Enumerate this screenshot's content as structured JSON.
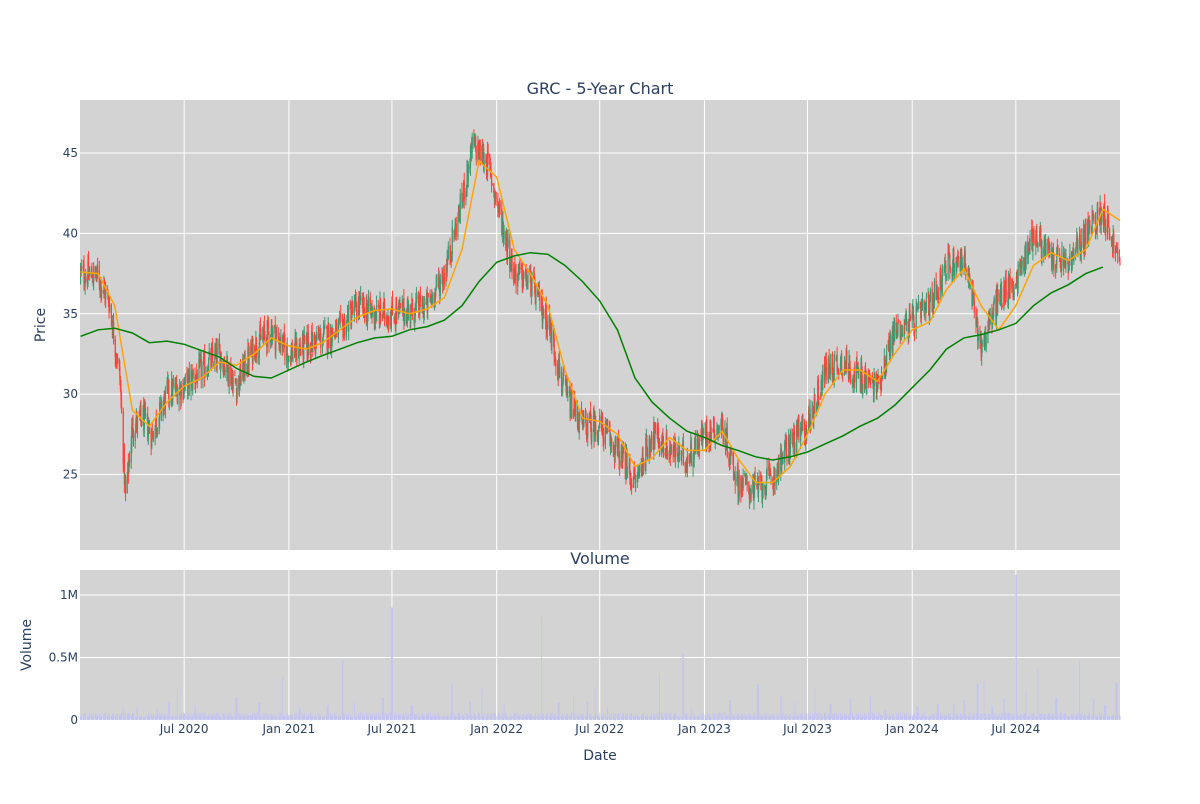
{
  "chart_data": [
    {
      "type": "candlestick",
      "title": "GRC - 5-Year Chart",
      "ylabel": "Price",
      "xlabel": "",
      "x_range": [
        "2019-12-31",
        "2024-12-31"
      ],
      "ylim": [
        20.3,
        48.3
      ],
      "y_ticks": [
        25,
        30,
        35,
        40,
        45
      ],
      "x_ticks": [
        "2020-07-01",
        "2021-01-01",
        "2021-07-01",
        "2022-01-01",
        "2022-07-01",
        "2023-01-01",
        "2023-07-01",
        "2024-01-01",
        "2024-07-01"
      ],
      "grid": true,
      "background": "#d3d3d3",
      "increasing_color": "#3d9970",
      "decreasing_color": "#ff4136",
      "close_anchors": [
        [
          "2020-01-01",
          37.5
        ],
        [
          "2020-02-01",
          37.3
        ],
        [
          "2020-02-20",
          35.8
        ],
        [
          "2020-03-10",
          31.0
        ],
        [
          "2020-03-20",
          23.5
        ],
        [
          "2020-04-01",
          28.0
        ],
        [
          "2020-04-20",
          28.5
        ],
        [
          "2020-05-05",
          27.5
        ],
        [
          "2020-06-01",
          30.0
        ],
        [
          "2020-07-01",
          30.5
        ],
        [
          "2020-08-01",
          31.5
        ],
        [
          "2020-09-01",
          32.5
        ],
        [
          "2020-10-01",
          30.5
        ],
        [
          "2020-11-01",
          33.0
        ],
        [
          "2020-12-01",
          34.0
        ],
        [
          "2021-01-01",
          32.5
        ],
        [
          "2021-02-01",
          33.0
        ],
        [
          "2021-03-01",
          33.5
        ],
        [
          "2021-04-01",
          34.0
        ],
        [
          "2021-05-01",
          35.5
        ],
        [
          "2021-06-01",
          35.0
        ],
        [
          "2021-07-01",
          35.0
        ],
        [
          "2021-08-01",
          35.2
        ],
        [
          "2021-09-01",
          35.5
        ],
        [
          "2021-10-01",
          37.5
        ],
        [
          "2021-11-01",
          42.0
        ],
        [
          "2021-11-20",
          45.5
        ],
        [
          "2021-12-15",
          44.5
        ],
        [
          "2022-01-15",
          40.0
        ],
        [
          "2022-02-01",
          37.5
        ],
        [
          "2022-03-01",
          37.0
        ],
        [
          "2022-04-01",
          34.5
        ],
        [
          "2022-05-01",
          30.0
        ],
        [
          "2022-06-01",
          28.0
        ],
        [
          "2022-07-01",
          28.0
        ],
        [
          "2022-08-01",
          26.5
        ],
        [
          "2022-09-01",
          24.5
        ],
        [
          "2022-10-01",
          27.5
        ],
        [
          "2022-11-01",
          26.5
        ],
        [
          "2022-12-01",
          26.0
        ],
        [
          "2023-01-01",
          27.5
        ],
        [
          "2023-02-01",
          28.0
        ],
        [
          "2023-03-01",
          24.5
        ],
        [
          "2023-04-01",
          24.0
        ],
        [
          "2023-05-01",
          24.8
        ],
        [
          "2023-06-01",
          27.0
        ],
        [
          "2023-07-01",
          28.0
        ],
        [
          "2023-08-01",
          31.5
        ],
        [
          "2023-09-01",
          32.0
        ],
        [
          "2023-10-01",
          31.0
        ],
        [
          "2023-11-01",
          30.5
        ],
        [
          "2023-12-01",
          34.0
        ],
        [
          "2024-01-01",
          34.5
        ],
        [
          "2024-02-01",
          35.5
        ],
        [
          "2024-03-01",
          38.0
        ],
        [
          "2024-04-01",
          38.5
        ],
        [
          "2024-05-01",
          33.0
        ],
        [
          "2024-06-01",
          36.0
        ],
        [
          "2024-07-01",
          37.0
        ],
        [
          "2024-08-01",
          40.0
        ],
        [
          "2024-09-01",
          38.5
        ],
        [
          "2024-10-01",
          38.0
        ],
        [
          "2024-11-01",
          40.0
        ],
        [
          "2024-12-01",
          41.5
        ],
        [
          "2024-12-31",
          38.0
        ]
      ],
      "series": [
        {
          "kind": "moving-average",
          "color": "#ffa500",
          "points": [
            [
              "2020-01-01",
              37.6
            ],
            [
              "2020-02-01",
              37.5
            ],
            [
              "2020-03-01",
              35.5
            ],
            [
              "2020-04-01",
              29.0
            ],
            [
              "2020-05-01",
              28.0
            ],
            [
              "2020-06-01",
              29.5
            ],
            [
              "2020-07-01",
              30.5
            ],
            [
              "2020-08-01",
              31.0
            ],
            [
              "2020-09-01",
              32.0
            ],
            [
              "2020-10-01",
              31.8
            ],
            [
              "2020-11-01",
              32.5
            ],
            [
              "2020-12-01",
              33.5
            ],
            [
              "2021-01-01",
              33.0
            ],
            [
              "2021-02-01",
              32.8
            ],
            [
              "2021-03-01",
              33.2
            ],
            [
              "2021-04-01",
              34.0
            ],
            [
              "2021-05-01",
              34.8
            ],
            [
              "2021-06-01",
              35.2
            ],
            [
              "2021-07-01",
              35.3
            ],
            [
              "2021-08-01",
              35.0
            ],
            [
              "2021-09-01",
              35.3
            ],
            [
              "2021-10-01",
              36.0
            ],
            [
              "2021-11-01",
              39.0
            ],
            [
              "2021-12-01",
              44.5
            ],
            [
              "2022-01-01",
              43.5
            ],
            [
              "2022-02-01",
              39.0
            ],
            [
              "2022-03-01",
              37.5
            ],
            [
              "2022-04-01",
              35.5
            ],
            [
              "2022-05-01",
              31.5
            ],
            [
              "2022-06-01",
              28.5
            ],
            [
              "2022-07-01",
              28.3
            ],
            [
              "2022-08-01",
              27.5
            ],
            [
              "2022-09-01",
              25.5
            ],
            [
              "2022-10-01",
              26.0
            ],
            [
              "2022-11-01",
              27.3
            ],
            [
              "2022-12-01",
              26.5
            ],
            [
              "2023-01-01",
              26.5
            ],
            [
              "2023-02-01",
              27.7
            ],
            [
              "2023-03-01",
              26.0
            ],
            [
              "2023-04-01",
              24.5
            ],
            [
              "2023-05-01",
              24.5
            ],
            [
              "2023-06-01",
              25.5
            ],
            [
              "2023-07-01",
              27.5
            ],
            [
              "2023-08-01",
              30.0
            ],
            [
              "2023-09-01",
              31.5
            ],
            [
              "2023-10-01",
              31.5
            ],
            [
              "2023-11-01",
              30.8
            ],
            [
              "2023-12-01",
              32.5
            ],
            [
              "2024-01-01",
              34.0
            ],
            [
              "2024-02-01",
              34.5
            ],
            [
              "2024-03-01",
              36.5
            ],
            [
              "2024-04-01",
              37.8
            ],
            [
              "2024-05-01",
              35.5
            ],
            [
              "2024-06-01",
              34.0
            ],
            [
              "2024-07-01",
              35.5
            ],
            [
              "2024-08-01",
              38.0
            ],
            [
              "2024-09-01",
              38.8
            ],
            [
              "2024-10-01",
              38.3
            ],
            [
              "2024-11-01",
              39.0
            ],
            [
              "2024-12-01",
              41.5
            ],
            [
              "2024-12-31",
              40.8
            ]
          ]
        },
        {
          "kind": "moving-average",
          "color": "#008000",
          "points": [
            [
              "2020-01-01",
              33.6
            ],
            [
              "2020-02-01",
              34.0
            ],
            [
              "2020-03-01",
              34.1
            ],
            [
              "2020-04-01",
              33.8
            ],
            [
              "2020-05-01",
              33.2
            ],
            [
              "2020-06-01",
              33.3
            ],
            [
              "2020-07-01",
              33.1
            ],
            [
              "2020-08-01",
              32.7
            ],
            [
              "2020-09-01",
              32.3
            ],
            [
              "2020-10-01",
              31.6
            ],
            [
              "2020-11-01",
              31.1
            ],
            [
              "2020-12-01",
              31.0
            ],
            [
              "2021-01-01",
              31.5
            ],
            [
              "2021-02-01",
              32.0
            ],
            [
              "2021-03-01",
              32.4
            ],
            [
              "2021-04-01",
              32.8
            ],
            [
              "2021-05-01",
              33.2
            ],
            [
              "2021-06-01",
              33.5
            ],
            [
              "2021-07-01",
              33.6
            ],
            [
              "2021-08-01",
              34.0
            ],
            [
              "2021-09-01",
              34.2
            ],
            [
              "2021-10-01",
              34.6
            ],
            [
              "2021-11-01",
              35.5
            ],
            [
              "2021-12-01",
              37.0
            ],
            [
              "2022-01-01",
              38.2
            ],
            [
              "2022-02-01",
              38.6
            ],
            [
              "2022-03-01",
              38.8
            ],
            [
              "2022-04-01",
              38.7
            ],
            [
              "2022-05-01",
              38.0
            ],
            [
              "2022-06-01",
              37.0
            ],
            [
              "2022-07-01",
              35.8
            ],
            [
              "2022-08-01",
              34.0
            ],
            [
              "2022-09-01",
              31.0
            ],
            [
              "2022-10-01",
              29.5
            ],
            [
              "2022-11-01",
              28.5
            ],
            [
              "2022-12-01",
              27.7
            ],
            [
              "2023-01-01",
              27.3
            ],
            [
              "2023-02-01",
              26.8
            ],
            [
              "2023-03-01",
              26.5
            ],
            [
              "2023-04-01",
              26.1
            ],
            [
              "2023-05-01",
              25.9
            ],
            [
              "2023-06-01",
              26.1
            ],
            [
              "2023-07-01",
              26.4
            ],
            [
              "2023-08-01",
              26.9
            ],
            [
              "2023-09-01",
              27.4
            ],
            [
              "2023-10-01",
              28.0
            ],
            [
              "2023-11-01",
              28.5
            ],
            [
              "2023-12-01",
              29.3
            ],
            [
              "2024-01-01",
              30.4
            ],
            [
              "2024-02-01",
              31.5
            ],
            [
              "2024-03-01",
              32.8
            ],
            [
              "2024-04-01",
              33.5
            ],
            [
              "2024-05-01",
              33.7
            ],
            [
              "2024-06-01",
              34.0
            ],
            [
              "2024-07-01",
              34.4
            ],
            [
              "2024-08-01",
              35.5
            ],
            [
              "2024-09-01",
              36.3
            ],
            [
              "2024-10-01",
              36.8
            ],
            [
              "2024-11-01",
              37.5
            ],
            [
              "2024-12-01",
              37.9
            ]
          ]
        }
      ]
    },
    {
      "type": "bar",
      "title": "Volume",
      "ylabel": "Volume",
      "xlabel": "Date",
      "x_range": [
        "2019-12-31",
        "2024-12-31"
      ],
      "ylim": [
        0,
        1200000
      ],
      "y_ticks": [
        0,
        500000,
        1000000
      ],
      "y_tick_labels": [
        "0",
        "0.5M",
        "1M"
      ],
      "x_ticks": [
        "2020-07-01",
        "2021-01-01",
        "2021-07-01",
        "2022-01-01",
        "2022-07-01",
        "2023-01-01",
        "2023-07-01",
        "2024-01-01",
        "2024-07-01"
      ],
      "x_tick_labels": [
        "Jul 2020",
        "Jan 2021",
        "Jul 2021",
        "Jan 2022",
        "Jul 2022",
        "Jan 2023",
        "Jul 2023",
        "Jan 2024",
        "Jul 2024"
      ],
      "grid": true,
      "background": "#d3d3d3",
      "bar_color": "#c4c4f0",
      "baseline_volume": 40000,
      "spikes": [
        [
          "2020-03-15",
          110000
        ],
        [
          "2020-04-10",
          100000
        ],
        [
          "2020-05-15",
          90000
        ],
        [
          "2020-06-05",
          150000
        ],
        [
          "2020-06-20",
          250000
        ],
        [
          "2020-07-20",
          120000
        ],
        [
          "2020-10-01",
          180000
        ],
        [
          "2020-11-10",
          140000
        ],
        [
          "2020-12-20",
          350000
        ],
        [
          "2021-01-20",
          100000
        ],
        [
          "2021-03-10",
          120000
        ],
        [
          "2021-04-05",
          480000
        ],
        [
          "2021-04-25",
          140000
        ],
        [
          "2021-06-15",
          180000
        ],
        [
          "2021-07-01",
          900000
        ],
        [
          "2021-08-05",
          120000
        ],
        [
          "2021-10-15",
          290000
        ],
        [
          "2021-11-15",
          150000
        ],
        [
          "2021-12-05",
          250000
        ],
        [
          "2022-01-15",
          120000
        ],
        [
          "2022-03-20",
          830000
        ],
        [
          "2022-04-20",
          140000
        ],
        [
          "2022-05-15",
          190000
        ],
        [
          "2022-06-10",
          150000
        ],
        [
          "2022-06-25",
          260000
        ],
        [
          "2022-07-15",
          100000
        ],
        [
          "2022-10-15",
          370000
        ],
        [
          "2022-11-25",
          530000
        ],
        [
          "2022-12-10",
          100000
        ],
        [
          "2023-02-15",
          160000
        ],
        [
          "2023-04-05",
          290000
        ],
        [
          "2023-05-15",
          190000
        ],
        [
          "2023-06-10",
          140000
        ],
        [
          "2023-07-15",
          250000
        ],
        [
          "2023-08-10",
          130000
        ],
        [
          "2023-09-15",
          170000
        ],
        [
          "2023-10-20",
          190000
        ],
        [
          "2023-11-15",
          80000
        ],
        [
          "2024-01-10",
          110000
        ],
        [
          "2024-02-15",
          130000
        ],
        [
          "2024-03-15",
          130000
        ],
        [
          "2024-04-01",
          160000
        ],
        [
          "2024-04-25",
          290000
        ],
        [
          "2024-05-05",
          310000
        ],
        [
          "2024-05-20",
          110000
        ],
        [
          "2024-06-10",
          170000
        ],
        [
          "2024-07-01",
          1160000
        ],
        [
          "2024-07-20",
          230000
        ],
        [
          "2024-08-10",
          410000
        ],
        [
          "2024-09-10",
          180000
        ],
        [
          "2024-10-20",
          470000
        ],
        [
          "2024-11-15",
          170000
        ],
        [
          "2024-12-05",
          120000
        ],
        [
          "2024-12-25",
          300000
        ]
      ]
    }
  ]
}
